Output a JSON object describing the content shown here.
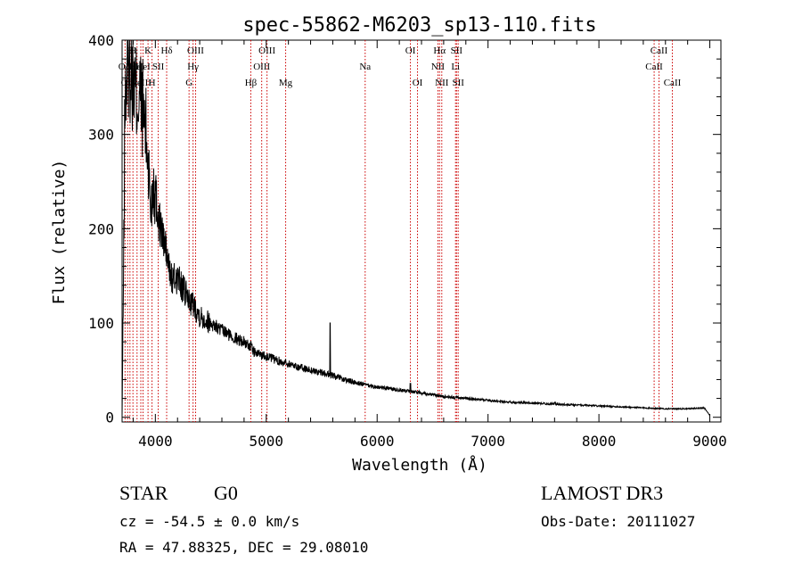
{
  "chart_data": {
    "type": "line",
    "title": "spec-55862-M6203_sp13-110.fits",
    "xlabel": "Wavelength (Å)",
    "ylabel": "Flux (relative)",
    "xlim": [
      3700,
      9100
    ],
    "ylim": [
      -5,
      400
    ],
    "xticks": [
      4000,
      5000,
      6000,
      7000,
      8000,
      9000
    ],
    "yticks": [
      0,
      100,
      200,
      300,
      400
    ],
    "line_color": "#000000",
    "marker_color": "#cc0000",
    "series": [
      {
        "name": "spectrum",
        "anchors": [
          [
            3700,
            0
          ],
          [
            3712,
            140
          ],
          [
            3725,
            330
          ],
          [
            3740,
            360
          ],
          [
            3760,
            380
          ],
          [
            3780,
            370
          ],
          [
            3800,
            360
          ],
          [
            3830,
            340
          ],
          [
            3860,
            340
          ],
          [
            3880,
            330
          ],
          [
            3900,
            320
          ],
          [
            3930,
            280
          ],
          [
            3960,
            220
          ],
          [
            3980,
            250
          ],
          [
            4000,
            240
          ],
          [
            4030,
            210
          ],
          [
            4060,
            195
          ],
          [
            4090,
            180
          ],
          [
            4120,
            160
          ],
          [
            4150,
            145
          ],
          [
            4200,
            148
          ],
          [
            4250,
            135
          ],
          [
            4300,
            125
          ],
          [
            4350,
            118
          ],
          [
            4400,
            108
          ],
          [
            4500,
            100
          ],
          [
            4600,
            92
          ],
          [
            4700,
            85
          ],
          [
            4800,
            80
          ],
          [
            4860,
            75
          ],
          [
            4900,
            68
          ],
          [
            5000,
            65
          ],
          [
            5100,
            60
          ],
          [
            5200,
            57
          ],
          [
            5300,
            53
          ],
          [
            5400,
            50
          ],
          [
            5500,
            47
          ],
          [
            5600,
            44
          ],
          [
            5700,
            40
          ],
          [
            5800,
            37
          ],
          [
            5900,
            34
          ],
          [
            6000,
            32
          ],
          [
            6200,
            29
          ],
          [
            6400,
            26
          ],
          [
            6600,
            22
          ],
          [
            6800,
            20
          ],
          [
            7000,
            18
          ],
          [
            7200,
            16
          ],
          [
            7400,
            15
          ],
          [
            7600,
            14
          ],
          [
            7800,
            13
          ],
          [
            8000,
            12
          ],
          [
            8200,
            11
          ],
          [
            8400,
            10
          ],
          [
            8600,
            9
          ],
          [
            8800,
            9
          ],
          [
            8950,
            10
          ],
          [
            9000,
            2
          ]
        ],
        "features": [
          {
            "x": 5577,
            "y": 100
          },
          {
            "x": 7605,
            "y": 16
          },
          {
            "x": 6300,
            "y": 36
          }
        ]
      }
    ],
    "line_markers": [
      {
        "x": 3727,
        "label": "OII",
        "row": 1
      },
      {
        "x": 3750,
        "label": "OII",
        "row": 2
      },
      {
        "x": 3771,
        "label": "H",
        "row": 0
      },
      {
        "x": 3798,
        "label": "H",
        "row": 0
      },
      {
        "x": 3835,
        "label": "HeI",
        "row": 1
      },
      {
        "x": 3869,
        "label": "NeIII",
        "row": 2
      },
      {
        "x": 3889,
        "label": "HeI",
        "row": 1
      },
      {
        "x": 3934,
        "label": "K",
        "row": 0
      },
      {
        "x": 3970,
        "label": "H",
        "row": 2
      },
      {
        "x": 4026,
        "label": "SII",
        "row": 1
      },
      {
        "x": 4102,
        "label": "Hδ",
        "row": 0
      },
      {
        "x": 4304,
        "label": "G",
        "row": 2
      },
      {
        "x": 4340,
        "label": "Hγ",
        "row": 1
      },
      {
        "x": 4363,
        "label": "OIII",
        "row": 0
      },
      {
        "x": 4861,
        "label": "Hβ",
        "row": 2
      },
      {
        "x": 4959,
        "label": "OIII",
        "row": 1
      },
      {
        "x": 5007,
        "label": "OIII",
        "row": 0
      },
      {
        "x": 5175,
        "label": "Mg",
        "row": 2
      },
      {
        "x": 5892,
        "label": "Na",
        "row": 1
      },
      {
        "x": 6300,
        "label": "OI",
        "row": 0
      },
      {
        "x": 6364,
        "label": "OI",
        "row": 2
      },
      {
        "x": 6548,
        "label": "NII",
        "row": 1
      },
      {
        "x": 6563,
        "label": "Hα",
        "row": 0
      },
      {
        "x": 6583,
        "label": "NII",
        "row": 2
      },
      {
        "x": 6707,
        "label": "Li",
        "row": 1
      },
      {
        "x": 6716,
        "label": "SII",
        "row": 0
      },
      {
        "x": 6731,
        "label": "SII",
        "row": 2
      },
      {
        "x": 8498,
        "label": "CaII",
        "row": 1
      },
      {
        "x": 8542,
        "label": "CaII",
        "row": 0
      },
      {
        "x": 8662,
        "label": "CaII",
        "row": 2
      }
    ]
  },
  "info": {
    "object_class": "STAR",
    "subclass": "G0",
    "survey": "LAMOST DR3",
    "redshift": "cz = -54.5 ± 0.0 km/s",
    "obs_date": "Obs-Date: 20111027",
    "coords": "RA =  47.88325, DEC =  29.08010"
  }
}
